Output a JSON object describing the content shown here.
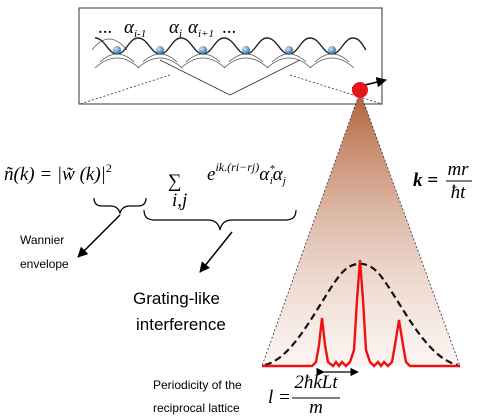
{
  "lattice": {
    "ellipsis_left": "...",
    "ellipsis_right": "...",
    "labels": [
      {
        "symbol": "α",
        "subscript": "i-1"
      },
      {
        "symbol": "α",
        "subscript": "i"
      },
      {
        "symbol": "α",
        "subscript": "i+1"
      }
    ]
  },
  "equation": {
    "lhs": "ñ(k) = ",
    "envelope": "|w̃ (k)|",
    "power": "2",
    "sum": "∑",
    "sum_index": "i,j",
    "exp_base": "e",
    "exponent": "ik.(ri−rj)",
    "tail_a": "α",
    "tail_a_sub": "i",
    "tail_a_sup": "*",
    "tail_b": "α",
    "tail_b_sub": "j"
  },
  "k_relation": {
    "lhs": "k =",
    "numerator": "mr",
    "denominator": "ħt"
  },
  "labels": {
    "wannier_line1": "Wannier",
    "wannier_line2": "envelope",
    "grating_line1": "Grating-like",
    "grating_line2": "interference",
    "periodicity_line1": "Periodicity of the",
    "periodicity_line2": "reciprocal lattice"
  },
  "l_relation": {
    "lhs": "l =",
    "numerator": "2ħkLt",
    "denominator": "m"
  }
}
